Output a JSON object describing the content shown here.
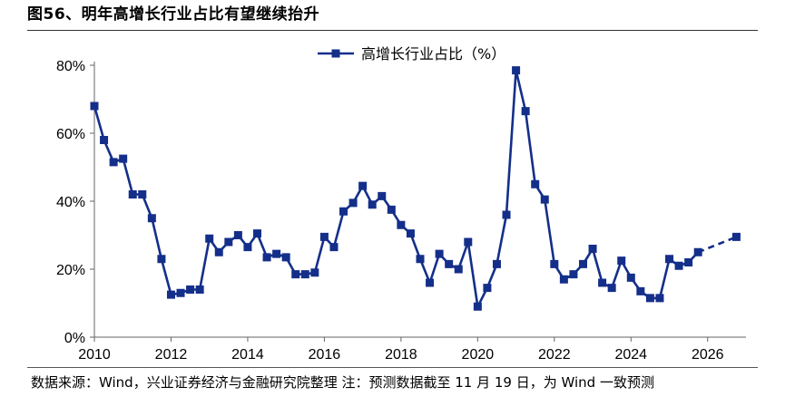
{
  "figure": {
    "title": "图56、明年高增长行业占比有望继续抬升",
    "source": "数据来源：Wind，兴业证券经济与金融研究院整理  注：预测数据截至 11 月 19 日，为 Wind 一致预测"
  },
  "chart_data": {
    "type": "line",
    "legend": [
      "高增长行业占比（%）"
    ],
    "legend_position": "top-center",
    "xlim": [
      2010,
      2027
    ],
    "ylim": [
      0,
      80
    ],
    "x_ticks": [
      "2010",
      "2012",
      "2014",
      "2016",
      "2018",
      "2020",
      "2022",
      "2024",
      "2026"
    ],
    "y_ticks": [
      "0%",
      "20%",
      "40%",
      "60%",
      "80%"
    ],
    "grid": false,
    "color": "#142f8a",
    "series": [
      {
        "name": "高增长行业占比（%）",
        "style": "solid",
        "points": [
          [
            2010.0,
            68
          ],
          [
            2010.25,
            58
          ],
          [
            2010.5,
            51.5
          ],
          [
            2010.75,
            52.5
          ],
          [
            2011.0,
            42
          ],
          [
            2011.25,
            42
          ],
          [
            2011.5,
            35
          ],
          [
            2011.75,
            23
          ],
          [
            2012.0,
            12.5
          ],
          [
            2012.25,
            13
          ],
          [
            2012.5,
            14
          ],
          [
            2012.75,
            14
          ],
          [
            2013.0,
            29
          ],
          [
            2013.25,
            25
          ],
          [
            2013.5,
            28
          ],
          [
            2013.75,
            30
          ],
          [
            2014.0,
            26.5
          ],
          [
            2014.25,
            30.5
          ],
          [
            2014.5,
            23.5
          ],
          [
            2014.75,
            24.5
          ],
          [
            2015.0,
            23.5
          ],
          [
            2015.25,
            18.5
          ],
          [
            2015.5,
            18.5
          ],
          [
            2015.75,
            19
          ],
          [
            2016.0,
            29.5
          ],
          [
            2016.25,
            26.5
          ],
          [
            2016.5,
            37
          ],
          [
            2016.75,
            39.5
          ],
          [
            2017.0,
            44.5
          ],
          [
            2017.25,
            39
          ],
          [
            2017.5,
            41.5
          ],
          [
            2017.75,
            37.5
          ],
          [
            2018.0,
            33
          ],
          [
            2018.25,
            30.5
          ],
          [
            2018.5,
            23
          ],
          [
            2018.75,
            16
          ],
          [
            2019.0,
            24.5
          ],
          [
            2019.25,
            21.5
          ],
          [
            2019.5,
            20
          ],
          [
            2019.75,
            28
          ],
          [
            2020.0,
            9
          ],
          [
            2020.25,
            14.5
          ],
          [
            2020.5,
            21.5
          ],
          [
            2020.75,
            36
          ],
          [
            2021.0,
            78.5
          ],
          [
            2021.25,
            66.5
          ],
          [
            2021.5,
            45
          ],
          [
            2021.75,
            40.5
          ],
          [
            2022.0,
            21.5
          ],
          [
            2022.25,
            17
          ],
          [
            2022.5,
            18.5
          ],
          [
            2022.75,
            21.5
          ],
          [
            2023.0,
            26
          ],
          [
            2023.25,
            16
          ],
          [
            2023.5,
            14.5
          ],
          [
            2023.75,
            22.5
          ],
          [
            2024.0,
            17.5
          ],
          [
            2024.25,
            13.5
          ],
          [
            2024.5,
            11.5
          ],
          [
            2024.75,
            11.5
          ],
          [
            2025.0,
            23
          ],
          [
            2025.25,
            21
          ],
          [
            2025.5,
            22
          ],
          [
            2025.75,
            25
          ]
        ]
      },
      {
        "name": "高增长行业占比（%）预测",
        "style": "dashed",
        "points": [
          [
            2025.75,
            25
          ],
          [
            2026.75,
            29.5
          ]
        ]
      }
    ]
  }
}
